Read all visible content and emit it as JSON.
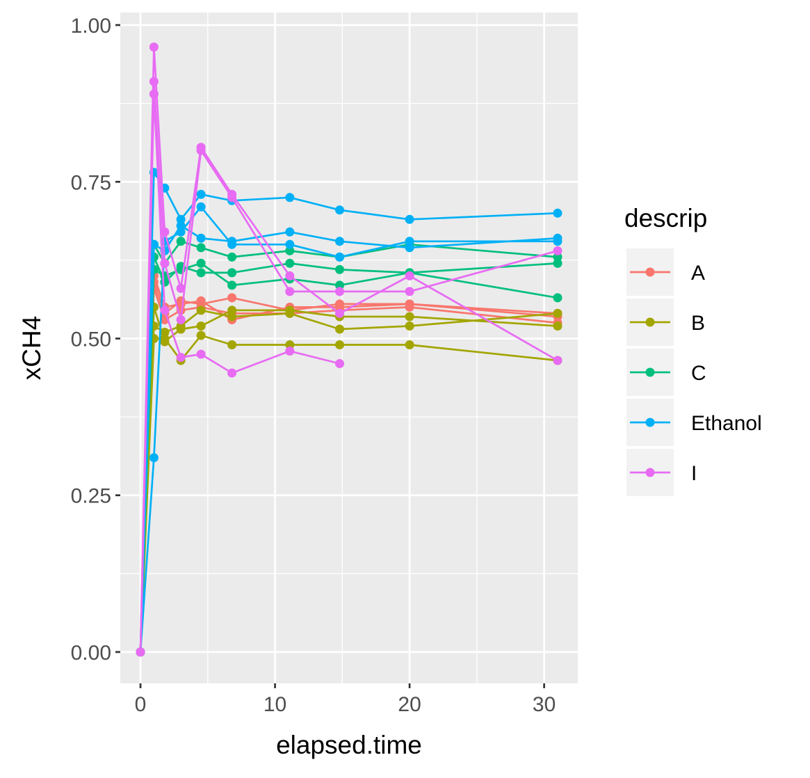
{
  "chart_data": {
    "type": "line",
    "xlabel": "elapsed.time",
    "ylabel": "xCH4",
    "xlim": [
      -1.5,
      32.5
    ],
    "ylim": [
      -0.05,
      1.02
    ],
    "x_ticks": [
      0,
      10,
      20,
      30
    ],
    "x_tick_labels": [
      "0",
      "10",
      "20",
      "30"
    ],
    "y_ticks": [
      0,
      0.25,
      0.5,
      0.75,
      1.0
    ],
    "y_tick_labels": [
      "0.00",
      "0.25",
      "0.50",
      "0.75",
      "1.00"
    ],
    "grid": true,
    "markers": true,
    "legend": {
      "title": "descrip",
      "position": "right"
    },
    "series": [
      {
        "name": "A",
        "color": "#F8766D",
        "lines": [
          [
            [
              0,
              0
            ],
            [
              1,
              0.6
            ],
            [
              1.8,
              0.55
            ],
            [
              3,
              0.555
            ],
            [
              4.5,
              0.56
            ],
            [
              6.8,
              0.53
            ],
            [
              11.1,
              0.55
            ],
            [
              14.8,
              0.55
            ],
            [
              20,
              0.555
            ],
            [
              31,
              0.54
            ]
          ],
          [
            [
              0,
              0
            ],
            [
              1,
              0.59
            ],
            [
              1.8,
              0.54
            ],
            [
              3,
              0.56
            ],
            [
              4.5,
              0.555
            ],
            [
              6.8,
              0.565
            ],
            [
              11.1,
              0.545
            ],
            [
              14.8,
              0.555
            ],
            [
              20,
              0.555
            ],
            [
              31,
              0.535
            ]
          ],
          [
            [
              0,
              0
            ],
            [
              1,
              0.58
            ],
            [
              1.8,
              0.53
            ],
            [
              3,
              0.545
            ],
            [
              4.5,
              0.55
            ],
            [
              6.8,
              0.54
            ],
            [
              11.1,
              0.54
            ],
            [
              14.8,
              0.545
            ],
            [
              20,
              0.55
            ],
            [
              31,
              0.525
            ]
          ]
        ]
      },
      {
        "name": "B",
        "color": "#A3A500",
        "lines": [
          [
            [
              0,
              0
            ],
            [
              1,
              0.5
            ],
            [
              1.8,
              0.5
            ],
            [
              3,
              0.465
            ],
            [
              4.5,
              0.505
            ],
            [
              6.8,
              0.49
            ],
            [
              11.1,
              0.49
            ],
            [
              14.8,
              0.49
            ],
            [
              20,
              0.49
            ],
            [
              31,
              0.465
            ]
          ],
          [
            [
              0,
              0
            ],
            [
              1,
              0.55
            ],
            [
              1.8,
              0.495
            ],
            [
              3,
              0.515
            ],
            [
              4.5,
              0.52
            ],
            [
              6.8,
              0.545
            ],
            [
              11.1,
              0.545
            ],
            [
              14.8,
              0.535
            ],
            [
              20,
              0.535
            ],
            [
              31,
              0.52
            ]
          ],
          [
            [
              0,
              0
            ],
            [
              1,
              0.52
            ],
            [
              1.8,
              0.51
            ],
            [
              3,
              0.52
            ],
            [
              4.5,
              0.545
            ],
            [
              6.8,
              0.535
            ],
            [
              11.1,
              0.54
            ],
            [
              14.8,
              0.515
            ],
            [
              20,
              0.52
            ],
            [
              31,
              0.54
            ]
          ]
        ]
      },
      {
        "name": "C",
        "color": "#00BF7D",
        "lines": [
          [
            [
              0,
              0
            ],
            [
              1,
              0.65
            ],
            [
              1.8,
              0.62
            ],
            [
              3,
              0.655
            ],
            [
              4.5,
              0.645
            ],
            [
              6.8,
              0.63
            ],
            [
              11.1,
              0.64
            ],
            [
              14.8,
              0.63
            ],
            [
              20,
              0.65
            ],
            [
              31,
              0.63
            ]
          ],
          [
            [
              0,
              0
            ],
            [
              1,
              0.61
            ],
            [
              1.8,
              0.6
            ],
            [
              3,
              0.61
            ],
            [
              4.5,
              0.62
            ],
            [
              6.8,
              0.585
            ],
            [
              11.1,
              0.595
            ],
            [
              14.8,
              0.585
            ],
            [
              20,
              0.605
            ],
            [
              31,
              0.62
            ]
          ],
          [
            [
              0,
              0
            ],
            [
              1,
              0.63
            ],
            [
              1.8,
              0.59
            ],
            [
              3,
              0.615
            ],
            [
              4.5,
              0.605
            ],
            [
              6.8,
              0.605
            ],
            [
              11.1,
              0.62
            ],
            [
              14.8,
              0.61
            ],
            [
              20,
              0.605
            ],
            [
              31,
              0.565
            ]
          ]
        ]
      },
      {
        "name": "Ethanol",
        "color": "#00B0F6",
        "lines": [
          [
            [
              0,
              0
            ],
            [
              1,
              0.765
            ],
            [
              1.8,
              0.74
            ],
            [
              3,
              0.69
            ],
            [
              4.5,
              0.73
            ],
            [
              6.8,
              0.72
            ],
            [
              11.1,
              0.725
            ],
            [
              14.8,
              0.705
            ],
            [
              20,
              0.69
            ],
            [
              31,
              0.7
            ]
          ],
          [
            [
              0,
              0
            ],
            [
              1,
              0.31
            ],
            [
              1.8,
              0.655
            ],
            [
              3,
              0.67
            ],
            [
              4.5,
              0.71
            ],
            [
              6.8,
              0.65
            ],
            [
              11.1,
              0.65
            ],
            [
              14.8,
              0.63
            ],
            [
              20,
              0.655
            ],
            [
              31,
              0.655
            ]
          ],
          [
            [
              0,
              0
            ],
            [
              1,
              0.65
            ],
            [
              1.8,
              0.64
            ],
            [
              3,
              0.68
            ],
            [
              4.5,
              0.66
            ],
            [
              6.8,
              0.655
            ],
            [
              11.1,
              0.67
            ],
            [
              14.8,
              0.655
            ],
            [
              20,
              0.645
            ],
            [
              31,
              0.66
            ]
          ]
        ]
      },
      {
        "name": "I",
        "color": "#E76BF3",
        "lines": [
          [
            [
              0,
              0
            ],
            [
              1,
              0.965
            ],
            [
              1.8,
              0.67
            ],
            [
              3,
              0.58
            ],
            [
              4.5,
              0.805
            ],
            [
              6.8,
              0.73
            ],
            [
              11.1,
              0.6
            ],
            [
              14.8,
              0.54
            ],
            [
              20,
              0.6
            ],
            [
              31,
              0.465
            ]
          ],
          [
            [
              0,
              0
            ],
            [
              1,
              0.91
            ],
            [
              1.8,
              0.62
            ],
            [
              3,
              0.53
            ],
            [
              4.5,
              0.8
            ],
            [
              6.8,
              0.725
            ],
            [
              11.1,
              0.575
            ],
            [
              14.8,
              0.575
            ],
            [
              20,
              0.575
            ],
            [
              31,
              0.64
            ]
          ],
          [
            [
              0,
              0
            ],
            [
              1,
              0.89
            ],
            [
              1.8,
              0.545
            ],
            [
              3,
              0.47
            ],
            [
              4.5,
              0.475
            ],
            [
              6.8,
              0.445
            ],
            [
              11.1,
              0.48
            ],
            [
              14.8,
              0.46
            ]
          ]
        ]
      }
    ]
  }
}
